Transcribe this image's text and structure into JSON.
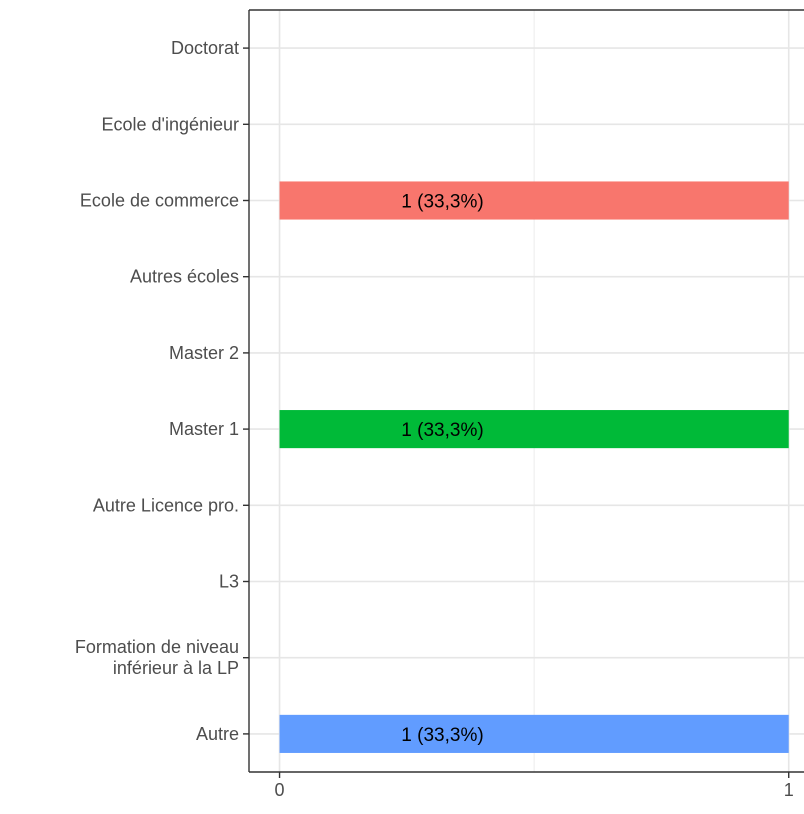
{
  "chart_data": {
    "type": "bar",
    "orientation": "horizontal",
    "categories": [
      [
        "Doctorat"
      ],
      [
        "Ecole d'ingénieur"
      ],
      [
        "Ecole de commerce"
      ],
      [
        "Autres écoles"
      ],
      [
        "Master 2"
      ],
      [
        "Master 1"
      ],
      [
        "Autre Licence pro."
      ],
      [
        "L3"
      ],
      [
        "Formation de niveau",
        "inférieur à la LP"
      ],
      [
        "Autre"
      ]
    ],
    "values": [
      0,
      0,
      1,
      0,
      0,
      1,
      0,
      0,
      0,
      1
    ],
    "bar_labels": [
      "",
      "",
      "1 (33,3%)",
      "",
      "",
      "1 (33,3%)",
      "",
      "",
      "",
      "1 (33,3%)"
    ],
    "bar_colors": [
      "",
      "",
      "#f8766d",
      "",
      "",
      "#00ba38",
      "",
      "",
      "",
      "#619cff"
    ],
    "x_ticks": [
      0,
      1
    ],
    "x_tick_labels": [
      "0",
      "1"
    ],
    "xlim": [
      -0.06,
      1.03
    ],
    "grid": true,
    "title": "",
    "xlabel": "",
    "ylabel": ""
  }
}
